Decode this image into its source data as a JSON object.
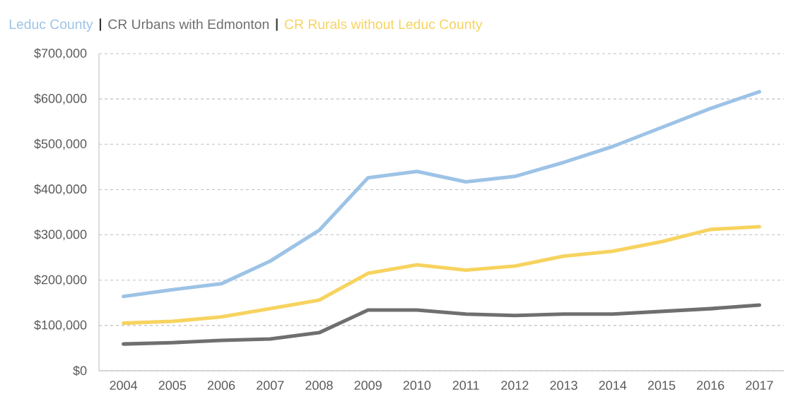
{
  "chart_data": {
    "type": "line",
    "categories": [
      "2004",
      "2005",
      "2006",
      "2007",
      "2008",
      "2009",
      "2010",
      "2011",
      "2012",
      "2013",
      "2014",
      "2015",
      "2016",
      "2017"
    ],
    "series": [
      {
        "name": "Leduc  County",
        "color": "#9dc3e6",
        "values": [
          164000,
          179000,
          192000,
          242000,
          310000,
          426000,
          440000,
          417000,
          429000,
          460000,
          495000,
          537000,
          579000,
          616000
        ]
      },
      {
        "name": "CR Urbans with Edmonton",
        "color": "#6f6f6f",
        "values": [
          59000,
          62000,
          67000,
          70000,
          84000,
          134000,
          134000,
          125000,
          122000,
          125000,
          125000,
          131000,
          137000,
          145000
        ]
      },
      {
        "name": "CR Rurals without Leduc  County",
        "color": "#f7d35f",
        "values": [
          105000,
          109000,
          119000,
          137000,
          156000,
          215000,
          234000,
          222000,
          231000,
          253000,
          264000,
          285000,
          312000,
          318000
        ]
      }
    ],
    "ylim": [
      0,
      700000
    ],
    "yticks": [
      {
        "value": 0,
        "label": "$0"
      },
      {
        "value": 100000,
        "label": "$100,000"
      },
      {
        "value": 200000,
        "label": "$200,000"
      },
      {
        "value": 300000,
        "label": "$300,000"
      },
      {
        "value": 400000,
        "label": "$400,000"
      },
      {
        "value": 500000,
        "label": "$500,000"
      },
      {
        "value": 600000,
        "label": "$600,000"
      },
      {
        "value": 700000,
        "label": "$700,000"
      }
    ],
    "grid": "y",
    "legend": "top left",
    "line_style": "solid"
  }
}
